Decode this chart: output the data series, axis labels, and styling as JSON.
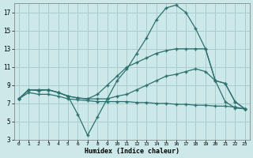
{
  "xlabel": "Humidex (Indice chaleur)",
  "background_color": "#cce8e8",
  "grid_color": "#aacccc",
  "line_color": "#2d7070",
  "xlim": [
    -0.5,
    23.5
  ],
  "ylim": [
    3,
    18
  ],
  "yticks": [
    3,
    5,
    7,
    9,
    11,
    13,
    15,
    17
  ],
  "xticks": [
    0,
    1,
    2,
    3,
    4,
    5,
    6,
    7,
    8,
    9,
    10,
    11,
    12,
    13,
    14,
    15,
    16,
    17,
    18,
    19,
    20,
    21,
    22,
    23
  ],
  "line1_x": [
    0,
    1,
    2,
    3,
    4,
    5,
    6,
    7,
    8,
    9,
    10,
    11,
    12,
    13,
    14,
    15,
    16,
    17,
    18,
    19,
    20,
    21,
    22,
    23
  ],
  "line1_y": [
    7.5,
    8.5,
    8.5,
    8.5,
    8.2,
    7.8,
    5.8,
    3.5,
    5.5,
    7.5,
    9.5,
    10.8,
    12.5,
    14.2,
    16.2,
    17.5,
    17.8,
    17.0,
    15.2,
    13.0,
    9.5,
    7.2,
    6.5,
    6.4
  ],
  "line2_x": [
    0,
    1,
    2,
    3,
    4,
    5,
    6,
    7,
    8,
    9,
    10,
    11,
    12,
    13,
    14,
    15,
    16,
    17,
    18,
    19,
    20,
    21,
    22,
    23
  ],
  "line2_y": [
    7.5,
    8.5,
    8.5,
    8.5,
    8.2,
    7.8,
    7.6,
    7.5,
    8.0,
    9.0,
    10.0,
    11.0,
    11.5,
    12.0,
    12.5,
    12.8,
    13.0,
    13.0,
    13.0,
    13.0,
    9.5,
    9.2,
    7.2,
    6.4
  ],
  "line3_x": [
    0,
    1,
    2,
    3,
    4,
    5,
    6,
    7,
    8,
    9,
    10,
    11,
    12,
    13,
    14,
    15,
    16,
    17,
    18,
    19,
    20,
    21,
    22,
    23
  ],
  "line3_y": [
    7.5,
    8.5,
    8.4,
    8.5,
    8.2,
    7.8,
    7.6,
    7.5,
    7.5,
    7.5,
    7.8,
    8.0,
    8.5,
    9.0,
    9.5,
    10.0,
    10.2,
    10.5,
    10.8,
    10.5,
    9.5,
    9.2,
    7.2,
    6.4
  ],
  "line4_x": [
    0,
    1,
    2,
    3,
    4,
    5,
    6,
    7,
    8,
    9,
    10,
    11,
    12,
    13,
    14,
    15,
    16,
    17,
    18,
    19,
    20,
    21,
    22,
    23
  ],
  "line4_y": [
    7.5,
    8.2,
    8.0,
    8.0,
    7.8,
    7.5,
    7.4,
    7.3,
    7.2,
    7.2,
    7.2,
    7.2,
    7.1,
    7.1,
    7.0,
    7.0,
    6.9,
    6.9,
    6.8,
    6.8,
    6.7,
    6.7,
    6.6,
    6.4
  ]
}
